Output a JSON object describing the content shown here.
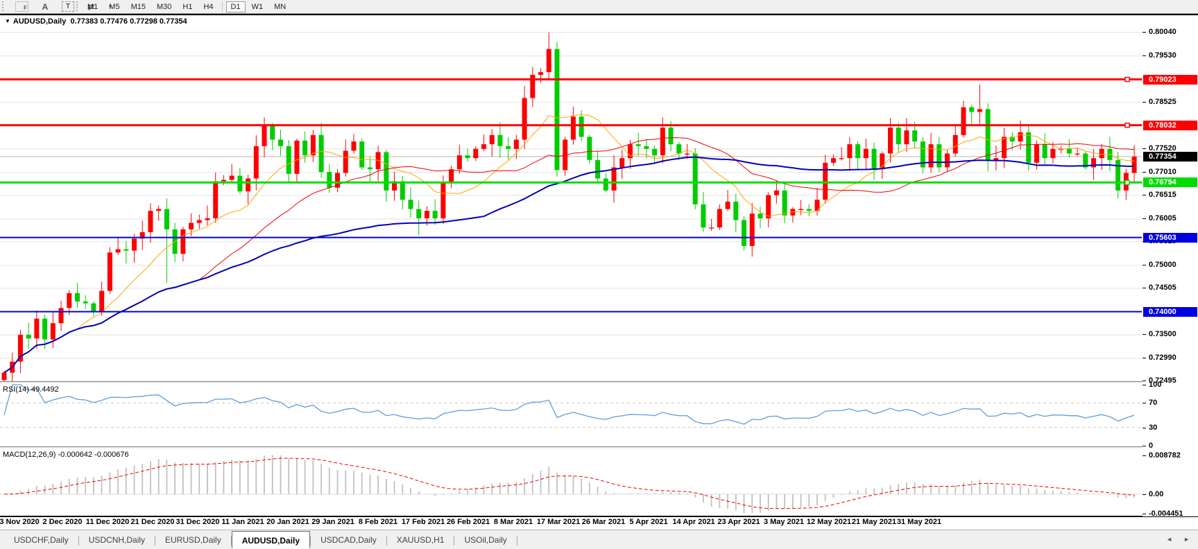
{
  "toolbar": {
    "tool_icons": [
      {
        "name": "fibonacci-icon",
        "glyph": "F"
      },
      {
        "name": "text-icon",
        "glyph": "A"
      },
      {
        "name": "label-icon",
        "glyph": "T"
      },
      {
        "name": "arrows-icon",
        "glyph": "⇄"
      }
    ],
    "dropdown_caret": "▾",
    "timeframes": [
      "M1",
      "M5",
      "M15",
      "M30",
      "H1",
      "H4",
      "D1",
      "W1",
      "MN"
    ],
    "active_timeframe": "D1"
  },
  "chart": {
    "collapse_glyph": "▼",
    "title": {
      "symbol": "AUDUSD,Daily",
      "values": "0.77383 0.77476 0.77298 0.77354"
    },
    "price_scale": {
      "top": 0.8041,
      "bottom": 0.72495
    },
    "price_ticks": [
      {
        "label": "0.80040",
        "price": 0.8004
      },
      {
        "label": "0.79530",
        "price": 0.7953
      },
      {
        "label": "0.78525",
        "price": 0.78525
      },
      {
        "label": "0.77520",
        "price": 0.7752
      },
      {
        "label": "0.77010",
        "price": 0.7701
      },
      {
        "label": "0.76515",
        "price": 0.76515
      },
      {
        "label": "0.76005",
        "price": 0.76005
      },
      {
        "label": "0.75510",
        "price": 0.7551
      },
      {
        "label": "0.75000",
        "price": 0.75
      },
      {
        "label": "0.74505",
        "price": 0.74505
      },
      {
        "label": "0.73500",
        "price": 0.735
      },
      {
        "label": "0.72990",
        "price": 0.7299
      },
      {
        "label": "0.72495",
        "price": 0.72495
      }
    ],
    "hlines": [
      {
        "label": "0.79023",
        "price": 0.79023,
        "color": "#ff0000",
        "thickness": 3,
        "handle": true
      },
      {
        "label": "0.78032",
        "price": 0.78032,
        "color": "#ff0000",
        "thickness": 3,
        "handle": true
      },
      {
        "label": "0.76794",
        "price": 0.76794,
        "color": "#00dd00",
        "thickness": 3,
        "handle": true
      },
      {
        "label": "0.75603",
        "price": 0.75603,
        "color": "#0000e0",
        "thickness": 2,
        "handle": false
      },
      {
        "label": "0.74000",
        "price": 0.74,
        "color": "#0000e0",
        "thickness": 2,
        "handle": false
      }
    ],
    "bid": {
      "label": "0.77354",
      "price": 0.77354,
      "line_color": "#b6b6b6",
      "badge_color": "#000000"
    },
    "candles": {
      "bull_color": "#ff0000",
      "bear_color": "#00cc00",
      "start_open": 0.7252,
      "closes": [
        0.7268,
        0.7292,
        0.735,
        0.7342,
        0.7385,
        0.734,
        0.7375,
        0.7408,
        0.744,
        0.7422,
        0.7418,
        0.74,
        0.7445,
        0.7528,
        0.7535,
        0.7532,
        0.7558,
        0.7572,
        0.7618,
        0.7622,
        0.7578,
        0.7525,
        0.7578,
        0.7592,
        0.7598,
        0.7602,
        0.7682,
        0.7685,
        0.7694,
        0.766,
        0.7688,
        0.7758,
        0.7802,
        0.7772,
        0.7758,
        0.7698,
        0.777,
        0.7738,
        0.7782,
        0.7702,
        0.7668,
        0.77,
        0.7748,
        0.7768,
        0.7712,
        0.7708,
        0.7745,
        0.7662,
        0.7682,
        0.7642,
        0.7622,
        0.7602,
        0.7618,
        0.7602,
        0.7678,
        0.7708,
        0.7738,
        0.7732,
        0.7752,
        0.7762,
        0.7782,
        0.7758,
        0.7752,
        0.7772,
        0.7862,
        0.7912,
        0.7918,
        0.7968,
        0.7706,
        0.7772,
        0.7822,
        0.7778,
        0.7728,
        0.7688,
        0.7662,
        0.7712,
        0.7732,
        0.7762,
        0.7758,
        0.7752,
        0.7738,
        0.7798,
        0.7762,
        0.7742,
        0.7742,
        0.7632,
        0.7582,
        0.7582,
        0.7622,
        0.7638,
        0.7598,
        0.7542,
        0.7612,
        0.7602,
        0.7652,
        0.7662,
        0.7608,
        0.7622,
        0.7622,
        0.7618,
        0.7642,
        0.7722,
        0.7732,
        0.7732,
        0.7762,
        0.7732,
        0.7752,
        0.7708,
        0.7742,
        0.7798,
        0.7762,
        0.7792,
        0.7768,
        0.7712,
        0.7762,
        0.7712,
        0.7742,
        0.7782,
        0.7842,
        0.7832,
        0.7838,
        0.7728,
        0.7732,
        0.7778,
        0.7768,
        0.7788,
        0.7722,
        0.7762,
        0.7732,
        0.7752,
        0.7752,
        0.7742,
        0.7742,
        0.7712,
        0.7732,
        0.7752,
        0.7728,
        0.7662,
        0.77,
        0.77354
      ],
      "overrides": {
        "20": {
          "l": 0.7462
        },
        "32": {
          "h": 0.782
        },
        "51": {
          "l": 0.7565
        },
        "67": {
          "h": 0.8004
        },
        "68": {
          "l": 0.7692
        },
        "91": {
          "l": 0.7532
        },
        "120": {
          "h": 0.7891
        },
        "137": {
          "l": 0.7645
        }
      }
    },
    "moving_averages": [
      {
        "period": 10,
        "color": "#ffa500",
        "width": 1
      },
      {
        "period": 25,
        "color": "#ee0000",
        "width": 1
      },
      {
        "period": 60,
        "color": "#0000bb",
        "width": 2
      }
    ],
    "grid_color": "#e2e2e2"
  },
  "date_axis": {
    "labels": [
      "23 Nov 2020",
      "2 Dec 2020",
      "11 Dec 2020",
      "21 Dec 2020",
      "31 Dec 2020",
      "11 Jan 2021",
      "20 Jan 2021",
      "29 Jan 2021",
      "8 Feb 2021",
      "17 Feb 2021",
      "26 Feb 2021",
      "8 Mar 2021",
      "17 Mar 2021",
      "26 Mar 2021",
      "5 Apr 2021",
      "14 Apr 2021",
      "23 Apr 2021",
      "3 May 2021",
      "12 May 2021",
      "21 May 2021",
      "31 May 2021"
    ]
  },
  "rsi_panel": {
    "label": "RSI(14) 49.4492",
    "period": 14,
    "value": 49.4492,
    "line_color": "#5f9ed6",
    "ticks": [
      {
        "label": "100",
        "v": 100,
        "dashed": false
      },
      {
        "label": "70",
        "v": 70,
        "dashed": true
      },
      {
        "label": "30",
        "v": 30,
        "dashed": true
      },
      {
        "label": "0",
        "v": 0,
        "dashed": false
      }
    ]
  },
  "macd_panel": {
    "label": "MACD(12,26,9) -0.000642 -0.000676",
    "fast": 12,
    "slow": 26,
    "signal": 9,
    "macd_value": -0.000642,
    "signal_value": -0.000676,
    "hist_color": "#c0c0c0",
    "signal_color": "#ee0000",
    "axis_top": 0.0102,
    "axis_bottom": -0.00488,
    "ticks": [
      {
        "label": "0.008782",
        "v": 0.008782
      },
      {
        "label": "0.00",
        "v": 0
      },
      {
        "label": "-0.004451",
        "v": -0.004451
      }
    ]
  },
  "tabs": {
    "items": [
      {
        "label": "USDCHF,Daily",
        "active": false
      },
      {
        "label": "USDCNH,Daily",
        "active": false
      },
      {
        "label": "EURUSD,Daily",
        "active": false
      },
      {
        "label": "AUDUSD,Daily",
        "active": true
      },
      {
        "label": "USDCAD,Daily",
        "active": false
      },
      {
        "label": "XAUUSD,H1",
        "active": false
      },
      {
        "label": "USOil,Daily",
        "active": false
      }
    ],
    "left_arrow": "◄",
    "right_arrow": "►"
  }
}
